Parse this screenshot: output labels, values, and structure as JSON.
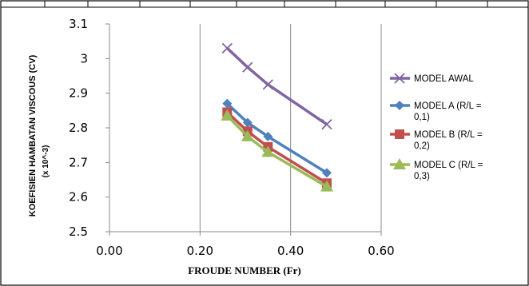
{
  "chart_data": {
    "type": "line",
    "xlabel": "FROUDE NUMBER (Fr)",
    "ylabel": "KOEFISIEN HAMBATAN VISCOUS (CV)",
    "ylabel_sub": "(x 10^-3)",
    "xlim": [
      0,
      0.6
    ],
    "ylim": [
      2.5,
      3.1
    ],
    "x_ticks": [
      "0.00",
      "0.20",
      "0.40",
      "0.60"
    ],
    "x_tick_values": [
      0,
      0.2,
      0.4,
      0.6
    ],
    "y_ticks": [
      "2.5",
      "2.6",
      "2.7",
      "2.8",
      "2.9",
      "3",
      "3.1"
    ],
    "y_tick_values": [
      2.5,
      2.6,
      2.7,
      2.8,
      2.9,
      3.0,
      3.1
    ],
    "grid": "vertical",
    "legend_position": "right",
    "series": [
      {
        "name": "MODEL AWAL",
        "color": "#8064A2",
        "marker": "x-icon",
        "x": [
          0.26,
          0.305,
          0.35,
          0.48
        ],
        "values": [
          3.03,
          2.975,
          2.925,
          2.81
        ]
      },
      {
        "name": "MODEL A (R/L = 0,1)",
        "color": "#4F81BD",
        "marker": "diamond-icon",
        "x": [
          0.26,
          0.305,
          0.35,
          0.48
        ],
        "values": [
          2.87,
          2.815,
          2.775,
          2.67
        ]
      },
      {
        "name": "MODEL B (R/L = 0,2)",
        "color": "#C0504D",
        "marker": "square-icon",
        "x": [
          0.26,
          0.305,
          0.35,
          0.48
        ],
        "values": [
          2.845,
          2.79,
          2.745,
          2.64
        ]
      },
      {
        "name": "MODEL C (R/L = 0,3)",
        "color": "#9BBB59",
        "marker": "triangle-icon",
        "x": [
          0.26,
          0.305,
          0.35,
          0.48
        ],
        "values": [
          2.835,
          2.775,
          2.73,
          2.63
        ]
      }
    ]
  }
}
